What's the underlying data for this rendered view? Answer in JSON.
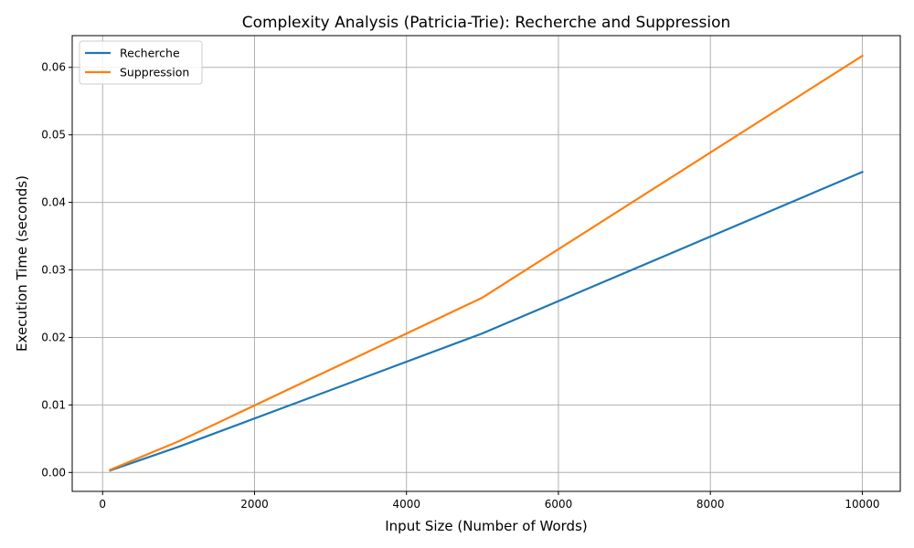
{
  "chart_data": {
    "type": "line",
    "title": "Complexity Analysis (Patricia-Trie): Recherche and Suppression",
    "xlabel": "Input Size (Number of Words)",
    "ylabel": "Execution Time (seconds)",
    "xlim": [
      -400,
      10500
    ],
    "ylim": [
      -0.0028,
      0.0647
    ],
    "xticks": [
      0,
      2000,
      4000,
      6000,
      8000,
      10000
    ],
    "xtick_labels": [
      "0",
      "2000",
      "4000",
      "6000",
      "8000",
      "10000"
    ],
    "yticks": [
      0.0,
      0.01,
      0.02,
      0.03,
      0.04,
      0.05,
      0.06
    ],
    "ytick_labels": [
      "0.00",
      "0.01",
      "0.02",
      "0.03",
      "0.04",
      "0.05",
      "0.06"
    ],
    "grid": true,
    "legend_position": "top-left",
    "x": [
      100,
      1000,
      5000,
      10000
    ],
    "series": [
      {
        "name": "Recherche",
        "color": "#1f77b4",
        "values": [
          0.0003,
          0.0038,
          0.0206,
          0.0445
        ]
      },
      {
        "name": "Suppression",
        "color": "#ff7f0e",
        "values": [
          0.0004,
          0.0046,
          0.0259,
          0.0617
        ]
      }
    ]
  }
}
